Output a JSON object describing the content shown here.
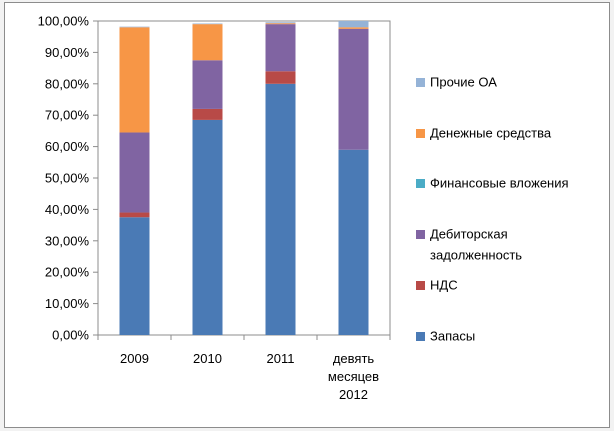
{
  "chart_data": {
    "type": "bar",
    "stacked": true,
    "categories": [
      [
        "2009"
      ],
      [
        "2010"
      ],
      [
        "2011"
      ],
      [
        "девять",
        "месяцев",
        "2012"
      ]
    ],
    "yticks": [
      "0,00%",
      "10,00%",
      "20,00%",
      "30,00%",
      "40,00%",
      "50,00%",
      "60,00%",
      "70,00%",
      "80,00%",
      "90,00%",
      "100,00%"
    ],
    "ylim": [
      0,
      100
    ],
    "grid": false,
    "legend": "right",
    "series": [
      {
        "name": "Запасы",
        "color": "#4a7ab5",
        "values": [
          37.5,
          68.5,
          80.0,
          59.0
        ]
      },
      {
        "name": "НДС",
        "color": "#b84a47",
        "values": [
          1.5,
          3.5,
          4.0,
          0.0
        ]
      },
      {
        "name": "Дебиторская задолженность",
        "color": "#8064a2",
        "values": [
          25.5,
          15.5,
          15.0,
          38.5
        ]
      },
      {
        "name": "Финансовые вложения",
        "color": "#4bacc6",
        "values": [
          0.0,
          0.0,
          0.0,
          0.0
        ]
      },
      {
        "name": "Денежные средства",
        "color": "#f79646",
        "values": [
          33.5,
          11.5,
          0.3,
          0.5
        ]
      },
      {
        "name": "Прочие ОА",
        "color": "#95b3d7",
        "values": [
          0.2,
          0.2,
          0.3,
          2.0
        ]
      }
    ]
  },
  "legend_entries": [
    {
      "name": "Прочие ОА",
      "lines": [
        "Прочие ОА"
      ],
      "color": "#95b3d7"
    },
    {
      "name": "Денежные средства",
      "lines": [
        "Денежные средства"
      ],
      "color": "#f79646"
    },
    {
      "name": "Финансовые вложения",
      "lines": [
        "Финансовые вложения"
      ],
      "color": "#4bacc6"
    },
    {
      "name": "Дебиторская задолженность",
      "lines": [
        "Дебиторская",
        "задолженность"
      ],
      "color": "#8064a2"
    },
    {
      "name": "НДС",
      "lines": [
        "НДС"
      ],
      "color": "#b84a47"
    },
    {
      "name": "Запасы",
      "lines": [
        "Запасы"
      ],
      "color": "#4a7ab5"
    }
  ]
}
